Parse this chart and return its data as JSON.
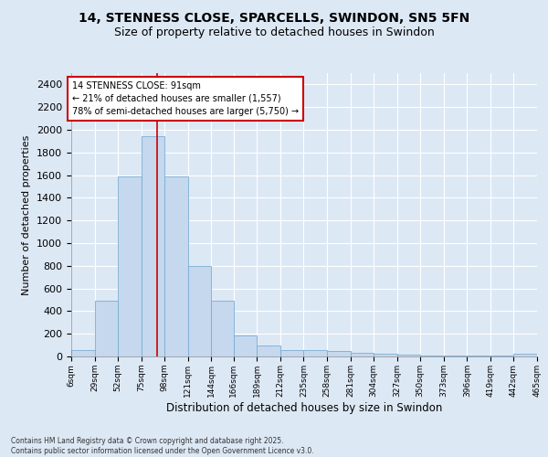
{
  "title_line1": "14, STENNESS CLOSE, SPARCELLS, SWINDON, SN5 5FN",
  "title_line2": "Size of property relative to detached houses in Swindon",
  "xlabel": "Distribution of detached houses by size in Swindon",
  "ylabel": "Number of detached properties",
  "annotation_title": "14 STENNESS CLOSE: 91sqm",
  "annotation_line1": "← 21% of detached houses are smaller (1,557)",
  "annotation_line2": "78% of semi-detached houses are larger (5,750) →",
  "vline_x": 91,
  "bar_color": "#c5d8ee",
  "bar_edge_color": "#7aadd4",
  "vline_color": "#cc0000",
  "background_color": "#dde8f5",
  "grid_color": "#ffffff",
  "footnote": "Contains HM Land Registry data © Crown copyright and database right 2025.\nContains public sector information licensed under the Open Government Licence v3.0.",
  "bin_edges": [
    6,
    29,
    52,
    75,
    98,
    121,
    144,
    166,
    189,
    212,
    235,
    258,
    281,
    304,
    327,
    350,
    373,
    396,
    419,
    442,
    465
  ],
  "bar_heights": [
    60,
    490,
    1590,
    1940,
    1590,
    800,
    490,
    185,
    100,
    60,
    55,
    45,
    35,
    25,
    18,
    5,
    5,
    5,
    5,
    25
  ],
  "ylim": [
    0,
    2500
  ],
  "yticks": [
    0,
    200,
    400,
    600,
    800,
    1000,
    1200,
    1400,
    1600,
    1800,
    2000,
    2200,
    2400
  ]
}
